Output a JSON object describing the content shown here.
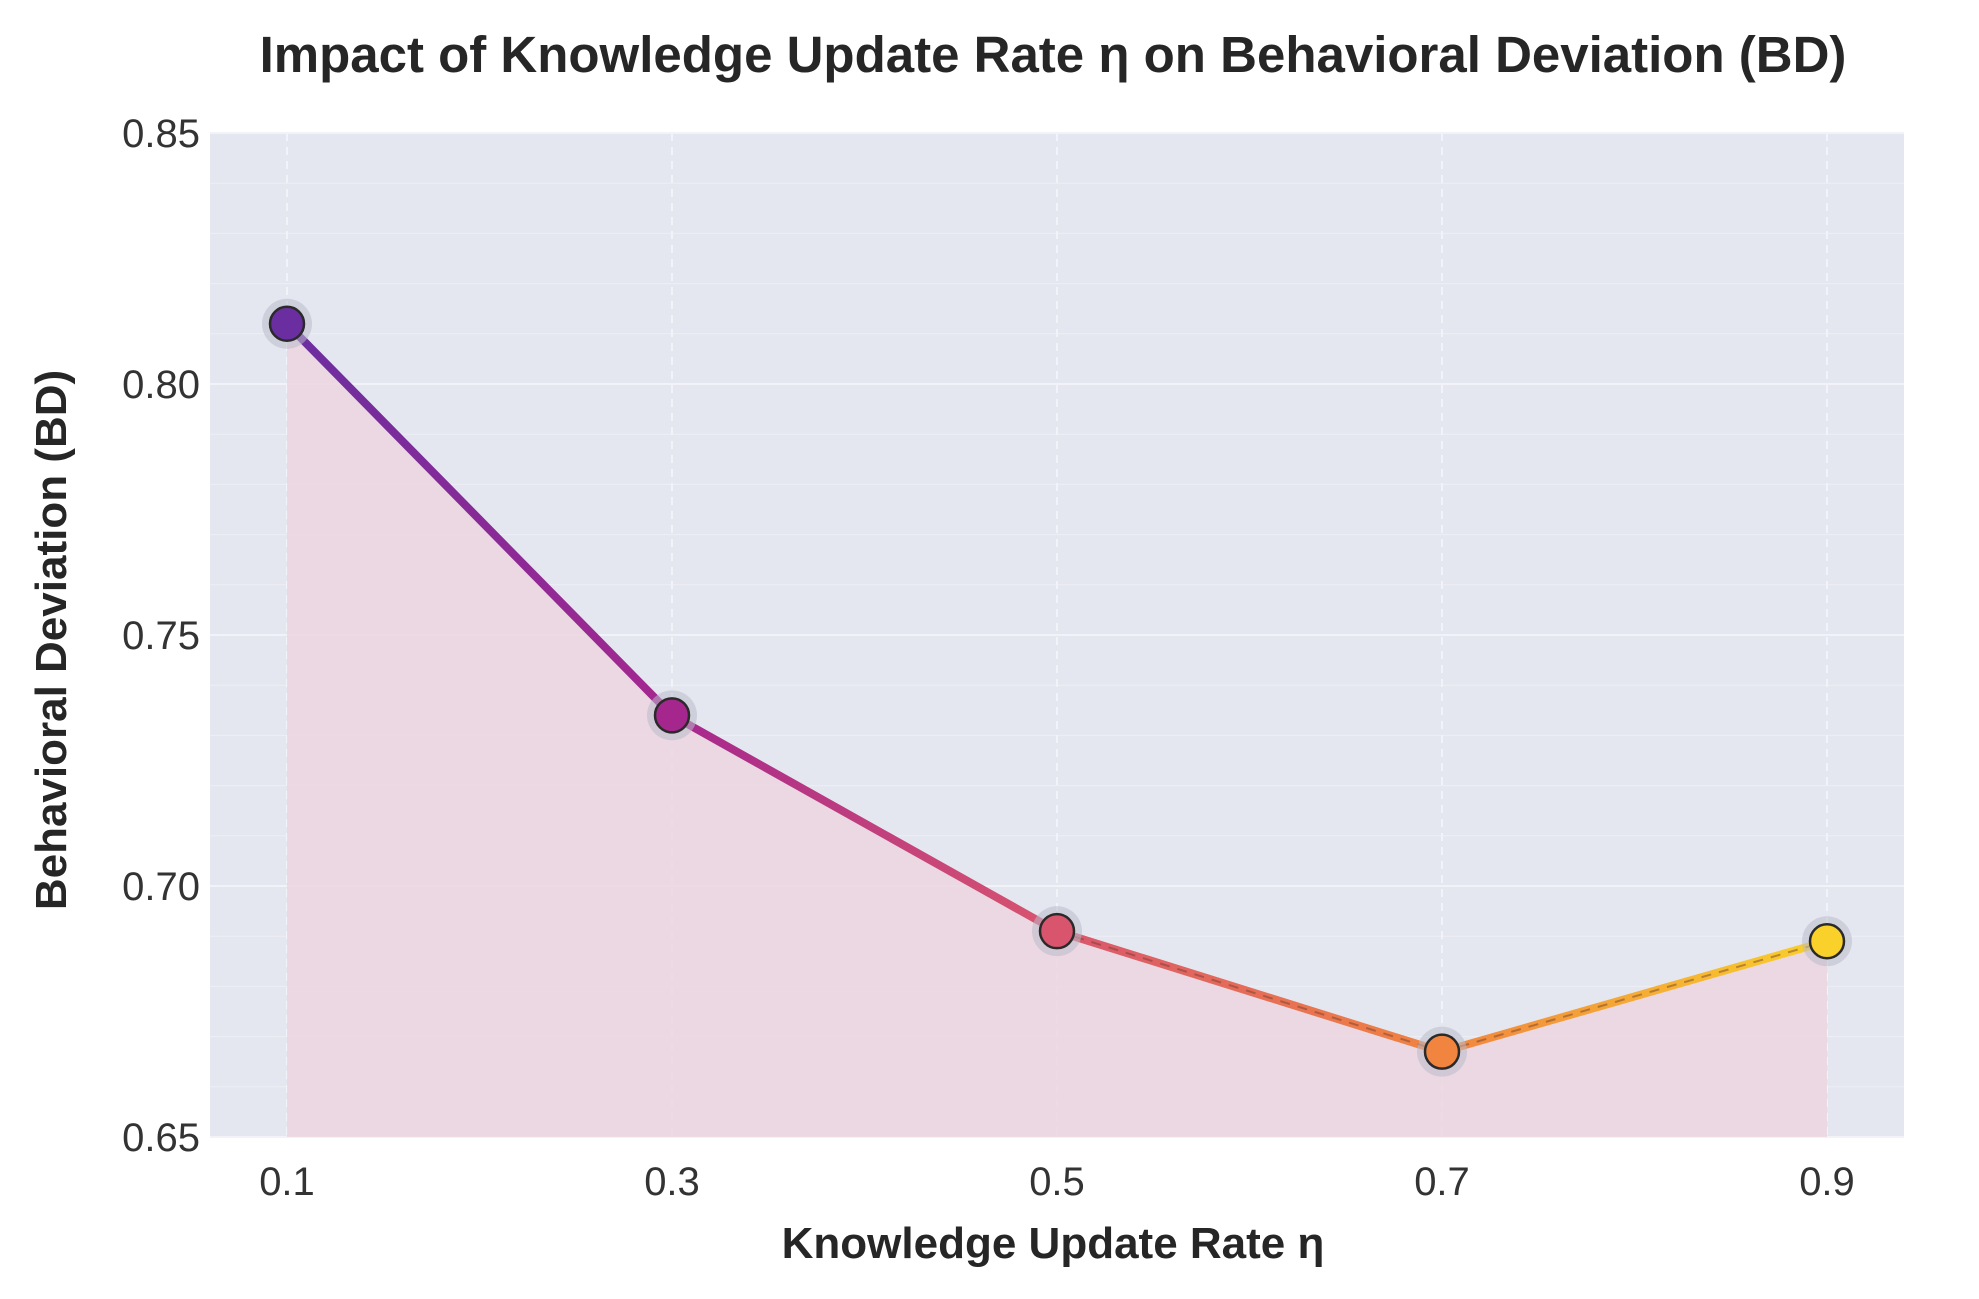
{
  "chart_data": {
    "type": "line",
    "title": "Impact of Knowledge Update Rate η on Behavioral Deviation (BD)",
    "xlabel": "Knowledge Update Rate η",
    "ylabel": "Behavioral Deviation (BD)",
    "x": [
      0.1,
      0.3,
      0.5,
      0.7,
      0.9
    ],
    "x_tick_labels": [
      "0.1",
      "0.3",
      "0.5",
      "0.7",
      "0.9"
    ],
    "y_ticks": [
      0.65,
      0.7,
      0.75,
      0.8,
      0.85
    ],
    "y_tick_labels": [
      "0.65",
      "0.70",
      "0.75",
      "0.80",
      "0.85"
    ],
    "series": [
      {
        "values": [
          0.812,
          0.734,
          0.691,
          0.667,
          0.689
        ]
      }
    ],
    "xlim": [
      0.06,
      0.94
    ],
    "ylim": [
      0.65,
      0.85
    ],
    "grid": true,
    "fill_under": true,
    "colors": {
      "background": "#e5e7f0",
      "fill": "#ecd5df",
      "grid": "#f2f3f8",
      "points": [
        "#6a2ea0",
        "#a5278e",
        "#d9556e",
        "#f18540",
        "#f9d12a"
      ]
    }
  }
}
